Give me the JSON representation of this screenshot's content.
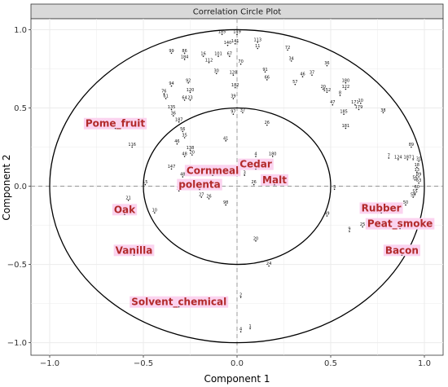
{
  "chart_data": {
    "type": "scatter",
    "title": "Correlation Circle Plot",
    "xlabel": "Component  1",
    "ylabel": "Component  2",
    "xlim": [
      -1.1,
      1.1
    ],
    "ylim": [
      -1.08,
      1.07
    ],
    "xticks": [
      -1.0,
      -0.5,
      0.0,
      0.5,
      1.0
    ],
    "yticks": [
      -1.0,
      -0.5,
      0.0,
      0.5,
      1.0
    ],
    "x_tick_labels": [
      "−1.0",
      "−0.5",
      "0.0",
      "0.5",
      "1.0"
    ],
    "y_tick_labels": [
      "−1.0",
      "−0.5",
      "0.0",
      "0.5",
      "1.0"
    ],
    "circle_radii": [
      1.0,
      0.5
    ],
    "reference_lines": {
      "x": 0,
      "y": 0,
      "style": "dashed"
    },
    "grid": true,
    "colors": {
      "panel_strip": "#d9d9d9",
      "grid": "#ebebeb",
      "variable_label": "#b22a2a",
      "variable_label_bg": "#fbd3ef",
      "points": "#111111"
    },
    "variables": [
      {
        "label": "Pome_fruit",
        "x": -0.65,
        "y": 0.4
      },
      {
        "label": "Cornmeal",
        "x": -0.13,
        "y": 0.1
      },
      {
        "label": "polenta",
        "x": -0.2,
        "y": 0.01
      },
      {
        "label": "Cedar",
        "x": 0.1,
        "y": 0.14
      },
      {
        "label": "Malt",
        "x": 0.2,
        "y": 0.04
      },
      {
        "label": "Oak",
        "x": -0.6,
        "y": -0.15
      },
      {
        "label": "Vanilla",
        "x": -0.55,
        "y": -0.41
      },
      {
        "label": "Rubber",
        "x": 0.77,
        "y": -0.14
      },
      {
        "label": "Peat_smoke",
        "x": 0.87,
        "y": -0.24
      },
      {
        "label": "Bacon",
        "x": 0.88,
        "y": -0.41
      },
      {
        "label": "Solvent_chemical",
        "x": -0.31,
        "y": -0.74
      }
    ],
    "points": [
      {
        "label": "185",
        "x": -0.08,
        "y": 0.97
      },
      {
        "label": "149",
        "x": 0.0,
        "y": 0.97
      },
      {
        "label": "141",
        "x": -0.01,
        "y": 0.91
      },
      {
        "label": "140",
        "x": -0.05,
        "y": 0.9
      },
      {
        "label": "113",
        "x": 0.11,
        "y": 0.92
      },
      {
        "label": "11",
        "x": 0.11,
        "y": 0.88
      },
      {
        "label": "99",
        "x": -0.35,
        "y": 0.85
      },
      {
        "label": "86",
        "x": -0.28,
        "y": 0.85
      },
      {
        "label": "184",
        "x": -0.28,
        "y": 0.81
      },
      {
        "label": "16",
        "x": -0.18,
        "y": 0.83
      },
      {
        "label": "101",
        "x": -0.1,
        "y": 0.83
      },
      {
        "label": "112",
        "x": -0.15,
        "y": 0.79
      },
      {
        "label": "67",
        "x": -0.04,
        "y": 0.83
      },
      {
        "label": "70",
        "x": 0.02,
        "y": 0.78
      },
      {
        "label": "72",
        "x": 0.27,
        "y": 0.87
      },
      {
        "label": "34",
        "x": 0.29,
        "y": 0.8
      },
      {
        "label": "30",
        "x": -0.11,
        "y": 0.72
      },
      {
        "label": "128",
        "x": -0.02,
        "y": 0.71
      },
      {
        "label": "91",
        "x": 0.15,
        "y": 0.73
      },
      {
        "label": "66",
        "x": 0.16,
        "y": 0.68
      },
      {
        "label": "46",
        "x": 0.35,
        "y": 0.7
      },
      {
        "label": "37",
        "x": 0.4,
        "y": 0.71
      },
      {
        "label": "36",
        "x": 0.48,
        "y": 0.77
      },
      {
        "label": "57",
        "x": 0.31,
        "y": 0.65
      },
      {
        "label": "180",
        "x": 0.58,
        "y": 0.66
      },
      {
        "label": "122",
        "x": 0.58,
        "y": 0.62
      },
      {
        "label": "20",
        "x": 0.46,
        "y": 0.62
      },
      {
        "label": "152",
        "x": 0.48,
        "y": 0.6
      },
      {
        "label": "8",
        "x": 0.55,
        "y": 0.58
      },
      {
        "label": "94",
        "x": -0.35,
        "y": 0.64
      },
      {
        "label": "92",
        "x": -0.26,
        "y": 0.66
      },
      {
        "label": "120",
        "x": -0.25,
        "y": 0.6
      },
      {
        "label": "76",
        "x": -0.39,
        "y": 0.59
      },
      {
        "label": "61",
        "x": -0.38,
        "y": 0.56
      },
      {
        "label": "64",
        "x": -0.28,
        "y": 0.55
      },
      {
        "label": "23",
        "x": -0.25,
        "y": 0.55
      },
      {
        "label": "182",
        "x": -0.01,
        "y": 0.63
      },
      {
        "label": "39",
        "x": -0.02,
        "y": 0.56
      },
      {
        "label": "47",
        "x": 0.51,
        "y": 0.52
      },
      {
        "label": "171",
        "x": 0.63,
        "y": 0.52
      },
      {
        "label": "10",
        "x": 0.66,
        "y": 0.53
      },
      {
        "label": "179",
        "x": 0.65,
        "y": 0.49
      },
      {
        "label": "185",
        "x": 0.57,
        "y": 0.46
      },
      {
        "label": "38",
        "x": 0.78,
        "y": 0.47
      },
      {
        "label": "97",
        "x": -0.02,
        "y": 0.46
      },
      {
        "label": "37",
        "x": 0.03,
        "y": 0.47
      },
      {
        "label": "135",
        "x": -0.35,
        "y": 0.49
      },
      {
        "label": "36",
        "x": -0.34,
        "y": 0.45
      },
      {
        "label": "187",
        "x": -0.31,
        "y": 0.41
      },
      {
        "label": "26",
        "x": 0.16,
        "y": 0.39
      },
      {
        "label": "181",
        "x": 0.58,
        "y": 0.37
      },
      {
        "label": "56",
        "x": -0.29,
        "y": 0.35
      },
      {
        "label": "35",
        "x": -0.28,
        "y": 0.31
      },
      {
        "label": "116",
        "x": -0.56,
        "y": 0.25
      },
      {
        "label": "41",
        "x": -0.06,
        "y": 0.29
      },
      {
        "label": "46",
        "x": -0.32,
        "y": 0.27
      },
      {
        "label": "138",
        "x": -0.25,
        "y": 0.23
      },
      {
        "label": "48",
        "x": -0.28,
        "y": 0.19
      },
      {
        "label": "20",
        "x": -0.24,
        "y": 0.2
      },
      {
        "label": "4",
        "x": 0.1,
        "y": 0.19
      },
      {
        "label": "180",
        "x": 0.19,
        "y": 0.19
      },
      {
        "label": "147",
        "x": -0.35,
        "y": 0.11
      },
      {
        "label": "48",
        "x": -0.29,
        "y": 0.06
      },
      {
        "label": "3",
        "x": 0.04,
        "y": 0.07
      },
      {
        "label": "26",
        "x": 0.09,
        "y": 0.01
      },
      {
        "label": "15",
        "x": -0.49,
        "y": 0.01
      },
      {
        "label": "32",
        "x": -0.31,
        "y": -0.03
      },
      {
        "label": "27",
        "x": -0.19,
        "y": -0.07
      },
      {
        "label": "26",
        "x": -0.15,
        "y": -0.08
      },
      {
        "label": "98",
        "x": -0.06,
        "y": -0.12
      },
      {
        "label": "3",
        "x": 0.52,
        "y": -0.02
      },
      {
        "label": "21",
        "x": -0.58,
        "y": -0.09
      },
      {
        "label": "10",
        "x": -0.44,
        "y": -0.17
      },
      {
        "label": "49",
        "x": 0.48,
        "y": -0.19
      },
      {
        "label": "9",
        "x": 0.6,
        "y": -0.29
      },
      {
        "label": "25",
        "x": 0.67,
        "y": -0.26
      },
      {
        "label": "20",
        "x": 0.1,
        "y": -0.35
      },
      {
        "label": "24",
        "x": 0.17,
        "y": -0.51
      },
      {
        "label": "2",
        "x": 0.02,
        "y": -0.71
      },
      {
        "label": "4",
        "x": 0.02,
        "y": -0.93
      },
      {
        "label": "1",
        "x": 0.07,
        "y": -0.91
      },
      {
        "label": "89",
        "x": 0.93,
        "y": 0.25
      },
      {
        "label": "7",
        "x": 0.81,
        "y": 0.18
      },
      {
        "label": "124",
        "x": 0.86,
        "y": 0.17
      },
      {
        "label": "187",
        "x": 0.91,
        "y": 0.17
      },
      {
        "label": "1",
        "x": 0.94,
        "y": 0.17
      },
      {
        "label": "31",
        "x": 0.97,
        "y": 0.16
      },
      {
        "label": "18",
        "x": 0.96,
        "y": 0.12
      },
      {
        "label": "13",
        "x": 0.96,
        "y": 0.09
      },
      {
        "label": "89",
        "x": 0.97,
        "y": 0.06
      },
      {
        "label": "56",
        "x": 0.95,
        "y": 0.04
      },
      {
        "label": "63",
        "x": 0.97,
        "y": 0.02
      },
      {
        "label": "60",
        "x": 0.96,
        "y": -0.02
      },
      {
        "label": "55",
        "x": 0.95,
        "y": -0.05
      },
      {
        "label": "58",
        "x": 0.94,
        "y": -0.07
      },
      {
        "label": "50",
        "x": 0.9,
        "y": -0.12
      }
    ]
  }
}
